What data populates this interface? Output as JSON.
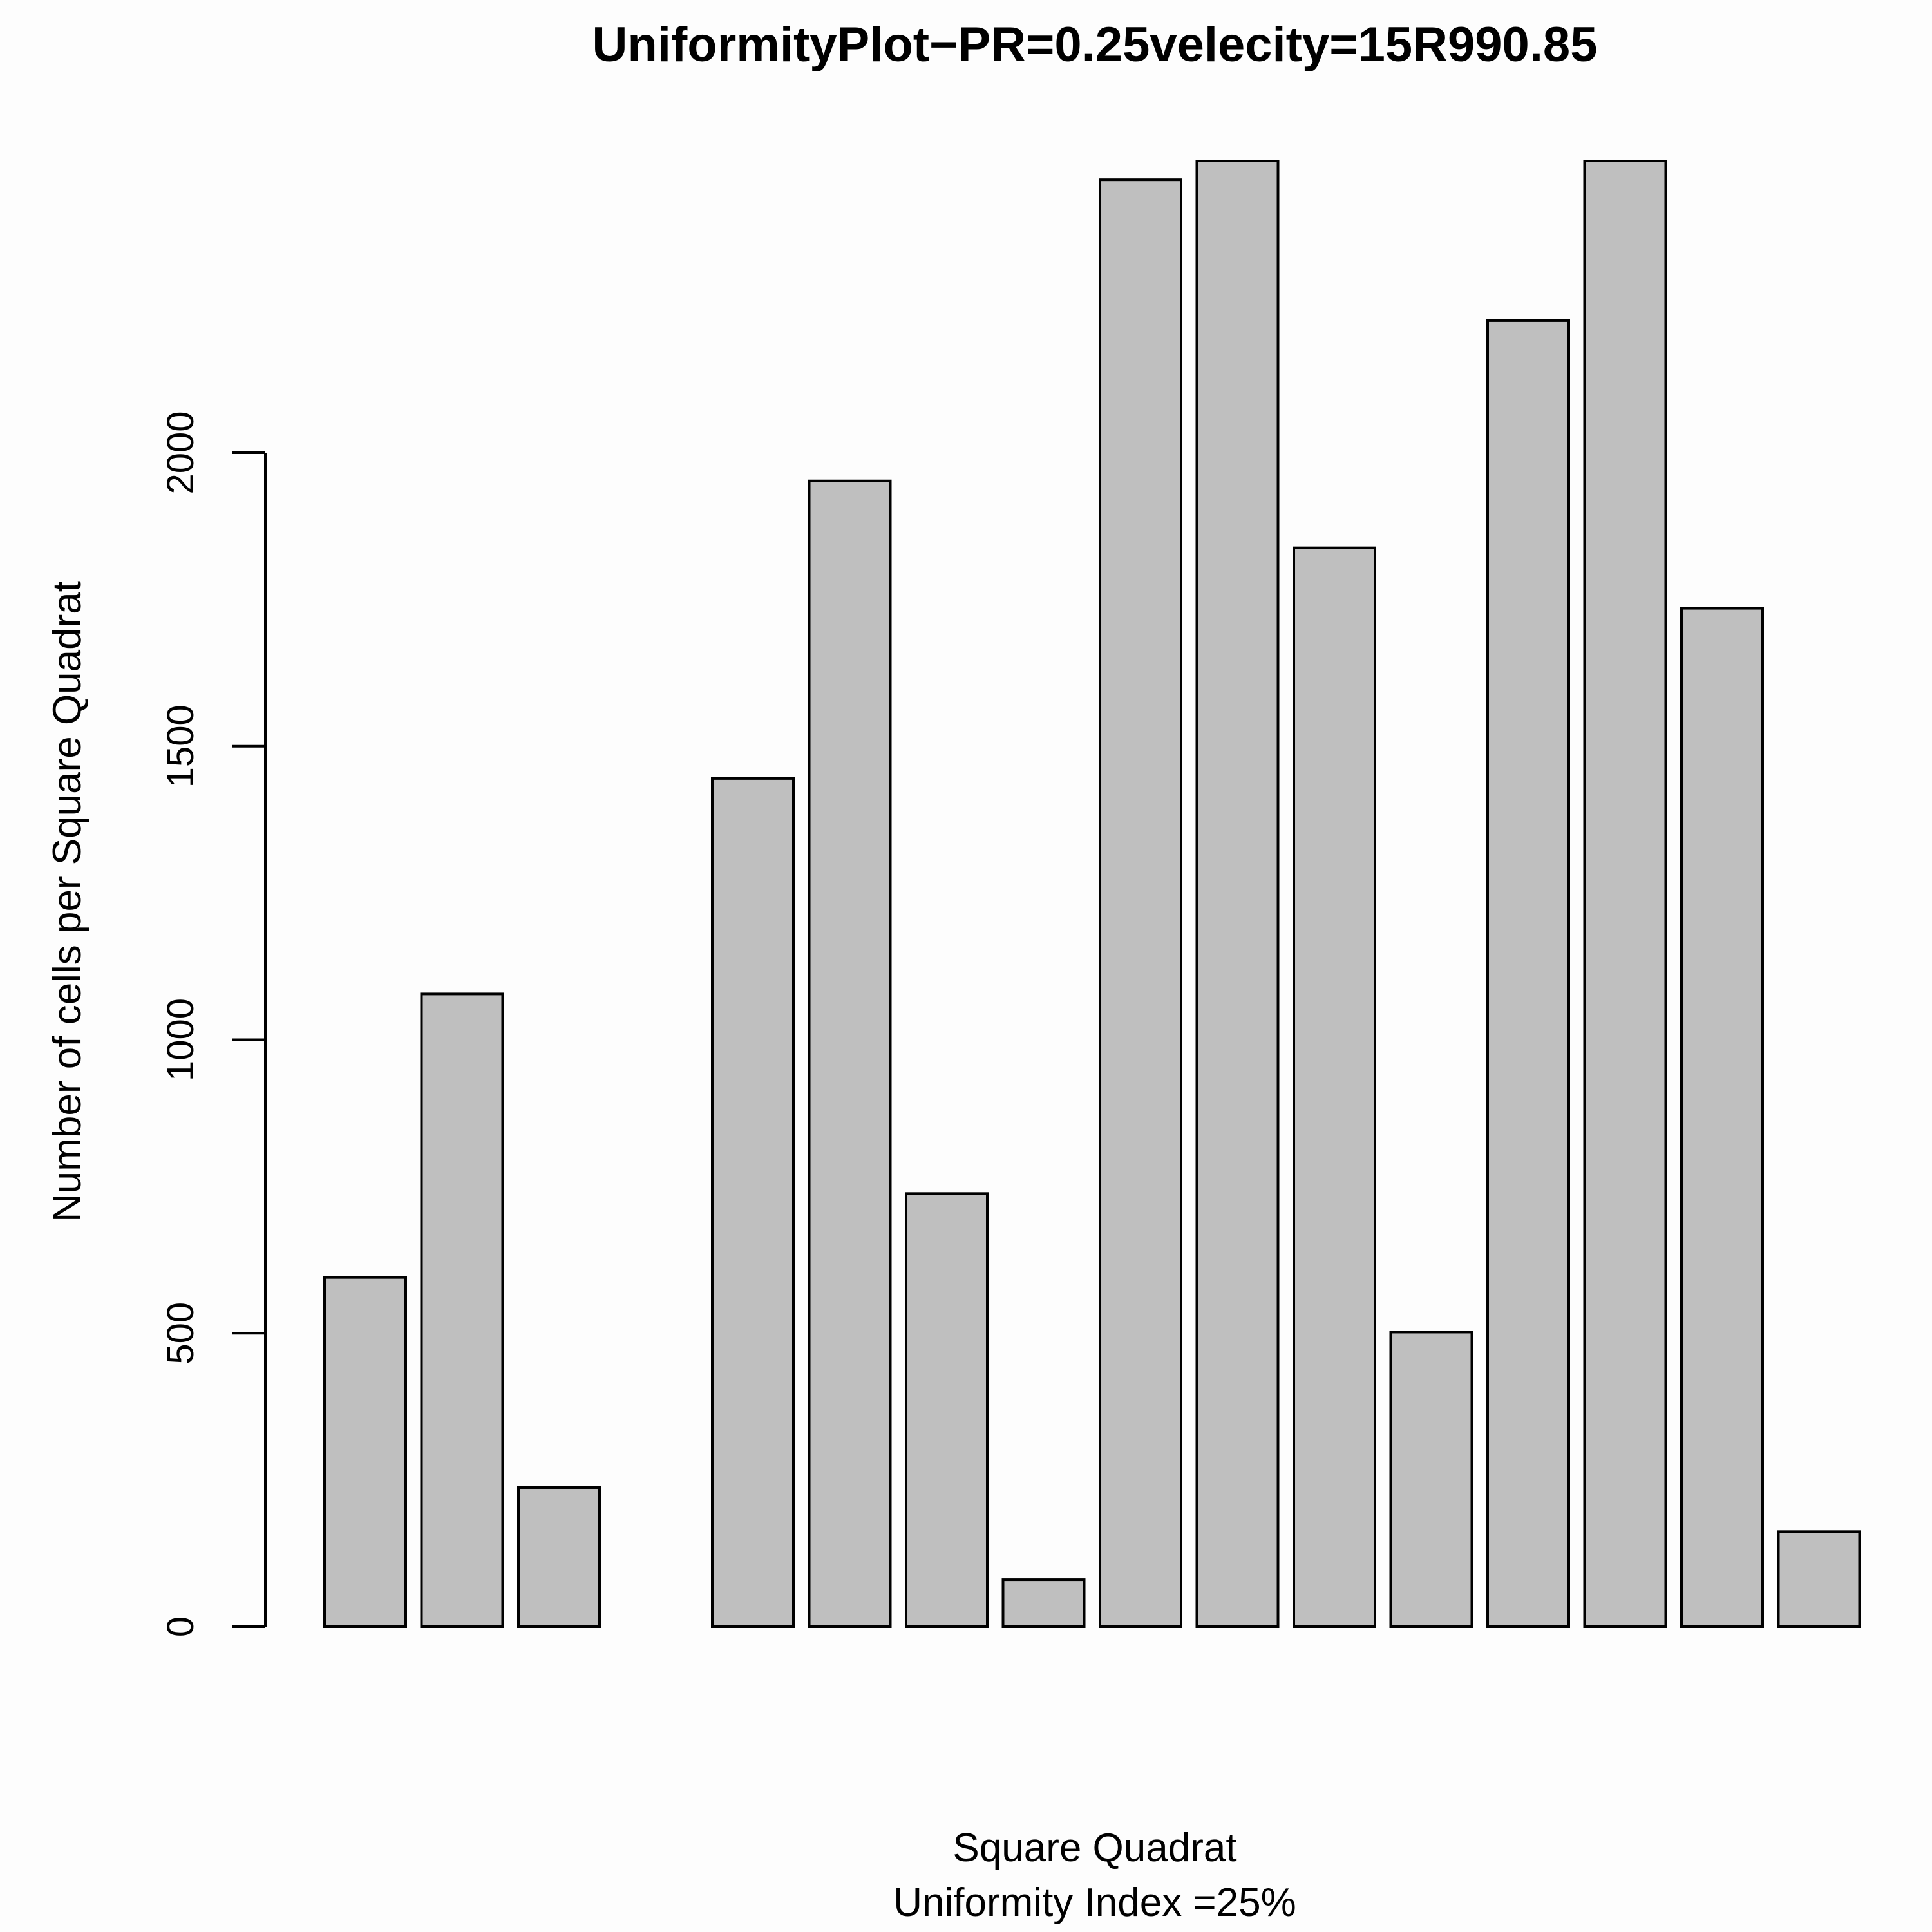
{
  "chart_data": {
    "type": "bar",
    "title": "UniformityPlot−PR=0.25velecity=15R990.85",
    "xlabel": "Square Quadrat",
    "subtitle": "Uniformity Index =25%",
    "ylabel": "Number of cells per Square Quadrat",
    "values": [
      595,
      1078,
      237,
      0,
      1445,
      1952,
      738,
      80,
      2465,
      2497,
      1838,
      502,
      2225,
      2497,
      1735,
      162
    ],
    "ylim": [
      0,
      2497
    ],
    "yticks": [
      0,
      500,
      1000,
      1500,
      2000
    ],
    "bar_color": "#bfbfbf",
    "grid": false
  }
}
